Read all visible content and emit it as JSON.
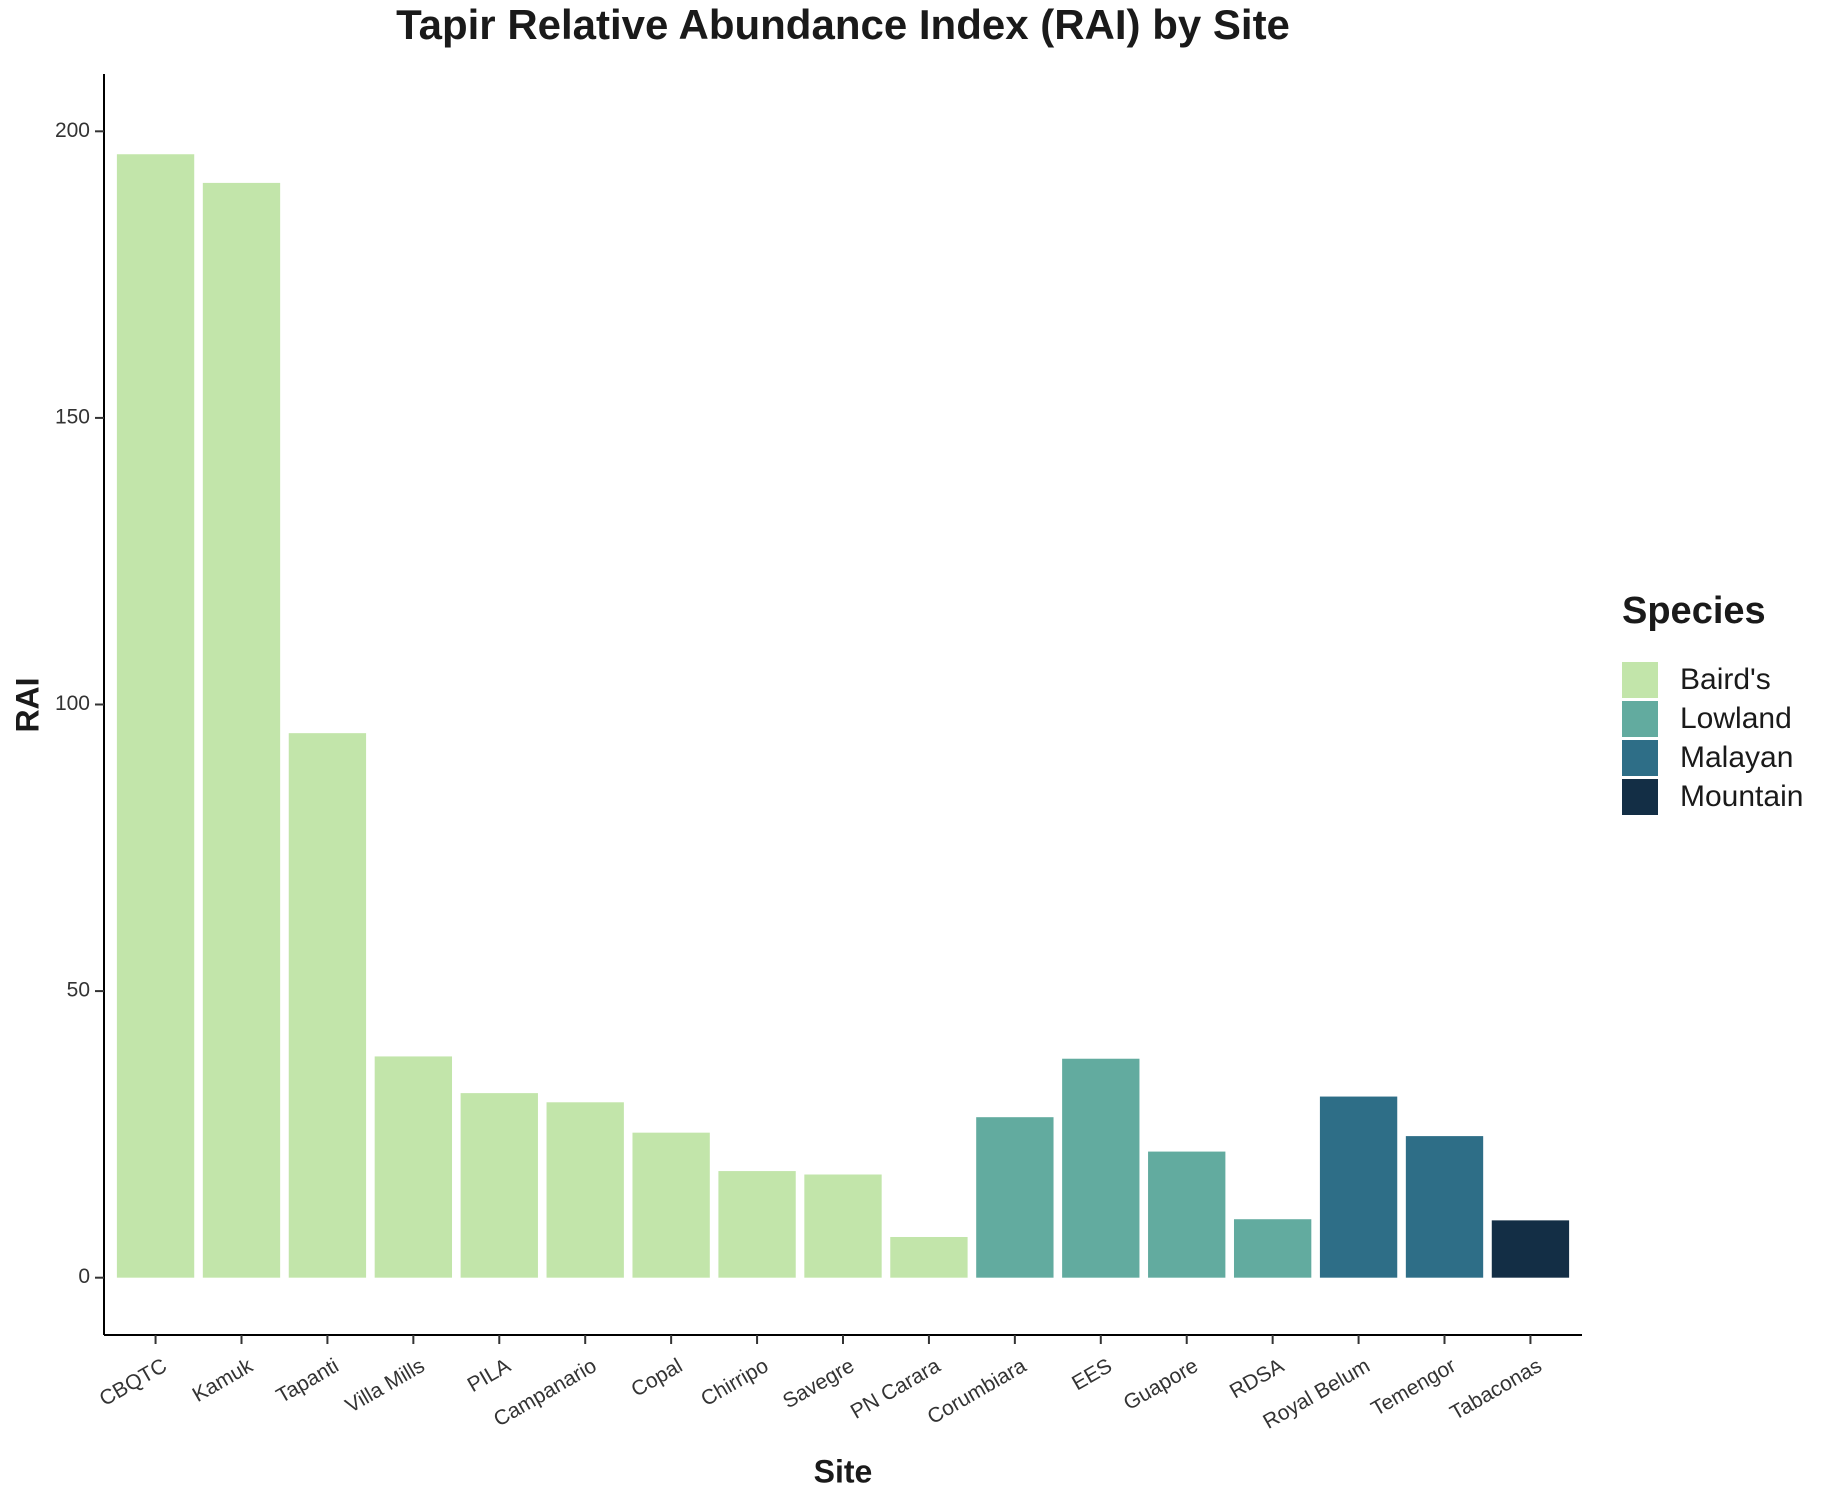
{
  "chart_data": {
    "type": "bar",
    "title": "Tapir Relative Abundance Index (RAI) by Site",
    "x_label": "Site",
    "y_label": "RAI",
    "categories": [
      "CBQTC",
      "Kamuk",
      "Tapanti",
      "Villa Mills",
      "PILA",
      "Campanario",
      "Copal",
      "Chirripo",
      "Savegre",
      "PN Carara",
      "Corumbiara",
      "EES",
      "Guapore",
      "RDSA",
      "Royal Belum",
      "Temengor",
      "Tabaconas"
    ],
    "legend_title": "Species",
    "series": [
      {
        "name": "Baird's",
        "color": "#c2e5aa",
        "values": [
          196,
          191,
          95,
          38.6,
          32.2,
          30.6,
          25.3,
          18.6,
          18,
          7.1,
          null,
          null,
          null,
          null,
          null,
          null,
          null
        ]
      },
      {
        "name": "Lowland",
        "color": "#62ab9f",
        "values": [
          null,
          null,
          null,
          null,
          null,
          null,
          null,
          null,
          null,
          null,
          28,
          38.2,
          22,
          10.2,
          null,
          null,
          null
        ]
      },
      {
        "name": "Malayan",
        "color": "#2e6e87",
        "values": [
          null,
          null,
          null,
          null,
          null,
          null,
          null,
          null,
          null,
          null,
          null,
          null,
          null,
          null,
          31.6,
          24.7,
          null
        ]
      },
      {
        "name": "Mountain",
        "color": "#132e45",
        "values": [
          null,
          null,
          null,
          null,
          null,
          null,
          null,
          null,
          null,
          null,
          null,
          null,
          null,
          null,
          null,
          null,
          10
        ]
      }
    ],
    "ylim": [
      -10,
      210
    ],
    "yticks": [
      0,
      50,
      100,
      150,
      200
    ],
    "grid": false,
    "legend_position": "right"
  }
}
